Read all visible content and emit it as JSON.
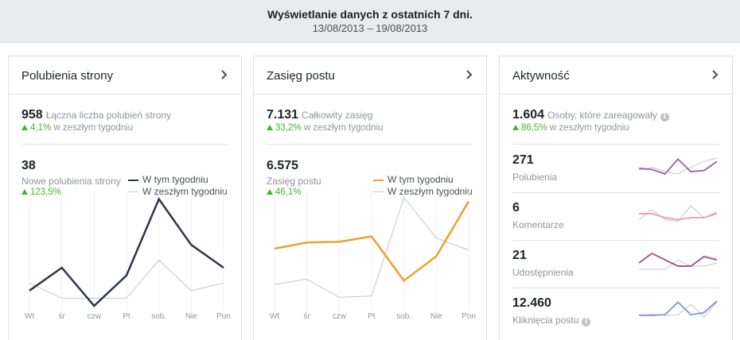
{
  "header": {
    "title": "Wyświetlanie danych z ostatnich 7 dni.",
    "range": "13/08/2013 – 19/08/2013"
  },
  "colors": {
    "likes": "#2b3648",
    "reach": "#f0a030",
    "prev": "#c4c6ca",
    "positive": "#42b72a"
  },
  "legend": {
    "this_week": "W tym tygodniu",
    "last_week": "W zeszłym tygodniu"
  },
  "cards": [
    {
      "title": "Polubienia strony",
      "total_value": "958",
      "total_label": "Łączna liczba polubień strony",
      "total_change": "4,1%",
      "total_change_suffix": "w zeszłym tygodniu",
      "section_value": "38",
      "section_label": "Nowe polubienia strony",
      "section_change": "123,5%"
    },
    {
      "title": "Zasięg postu",
      "total_value": "7.131",
      "total_label": "Całkowity zasięg",
      "total_change": "33,2%",
      "total_change_suffix": "w zeszłym tygodniu",
      "section_value": "6.575",
      "section_label": "Zasięg postu",
      "section_change": "46,1%"
    },
    {
      "title": "Aktywność",
      "total_value": "1.604",
      "total_label": "Osoby, które zareagowały",
      "total_change": "86,5%",
      "total_change_suffix": "w zeszłym tygodniu",
      "rows": [
        {
          "value": "271",
          "label": "Polubienia"
        },
        {
          "value": "6",
          "label": "Komentarze"
        },
        {
          "value": "21",
          "label": "Udostępnienia"
        },
        {
          "value": "12.460",
          "label": "Kliknięcia postu"
        }
      ]
    }
  ],
  "chart_data": [
    {
      "type": "line",
      "x": [
        "Wt",
        "śr",
        "czw",
        "Pt",
        "sob.",
        "Nie",
        "Pon"
      ],
      "series": [
        {
          "name": "W tym tygodniu",
          "values": [
            2,
            5,
            0,
            4,
            14,
            8,
            5
          ]
        },
        {
          "name": "W zeszłym tygodniu",
          "values": [
            3,
            1,
            1,
            1,
            6,
            2,
            3
          ]
        }
      ],
      "ylim": [
        0,
        15
      ]
    },
    {
      "type": "line",
      "x": [
        "Wt",
        "śr",
        "czw",
        "Pt",
        "sob.",
        "Nie",
        "Pon"
      ],
      "series": [
        {
          "name": "W tym tygodniu",
          "values": [
            750,
            830,
            840,
            910,
            330,
            650,
            1370
          ]
        },
        {
          "name": "W zeszłym tygodniu",
          "values": [
            280,
            350,
            110,
            130,
            1420,
            890,
            730
          ]
        }
      ],
      "ylim": [
        0,
        1500
      ]
    },
    {
      "type": "line",
      "x": [
        "Wt",
        "śr",
        "czw",
        "Pt",
        "sob.",
        "Nie",
        "Pon"
      ],
      "series": [
        {
          "values": [
            40,
            38,
            30,
            56,
            34,
            36,
            52
          ]
        },
        {
          "values": [
            36,
            42,
            34,
            30,
            42,
            52,
            58
          ]
        }
      ]
    },
    {
      "type": "line",
      "x": [
        "Wt",
        "śr",
        "czw",
        "Pt",
        "sob.",
        "Nie",
        "Pon"
      ],
      "series": [
        {
          "values": [
            1,
            1,
            0.8,
            0.7,
            0.8,
            0.8,
            1
          ]
        },
        {
          "values": [
            0.7,
            1.2,
            0.7,
            0.6,
            1.4,
            0.8,
            1.1
          ]
        }
      ]
    },
    {
      "type": "line",
      "x": [
        "Wt",
        "śr",
        "czw",
        "Pt",
        "sob.",
        "Nie",
        "Pon"
      ],
      "series": [
        {
          "values": [
            3,
            6,
            4,
            2,
            2,
            5,
            4
          ]
        },
        {
          "values": [
            1,
            1,
            1,
            4,
            2,
            2,
            3
          ]
        }
      ]
    },
    {
      "type": "line",
      "x": [
        "Wt",
        "śr",
        "czw",
        "Pt",
        "sob.",
        "Nie",
        "Pon"
      ],
      "series": [
        {
          "values": [
            1500,
            1500,
            1600,
            3900,
            1600,
            2000,
            4100
          ]
        },
        {
          "values": [
            1400,
            1700,
            1500,
            1600,
            3500,
            1200,
            3900
          ]
        }
      ]
    }
  ]
}
